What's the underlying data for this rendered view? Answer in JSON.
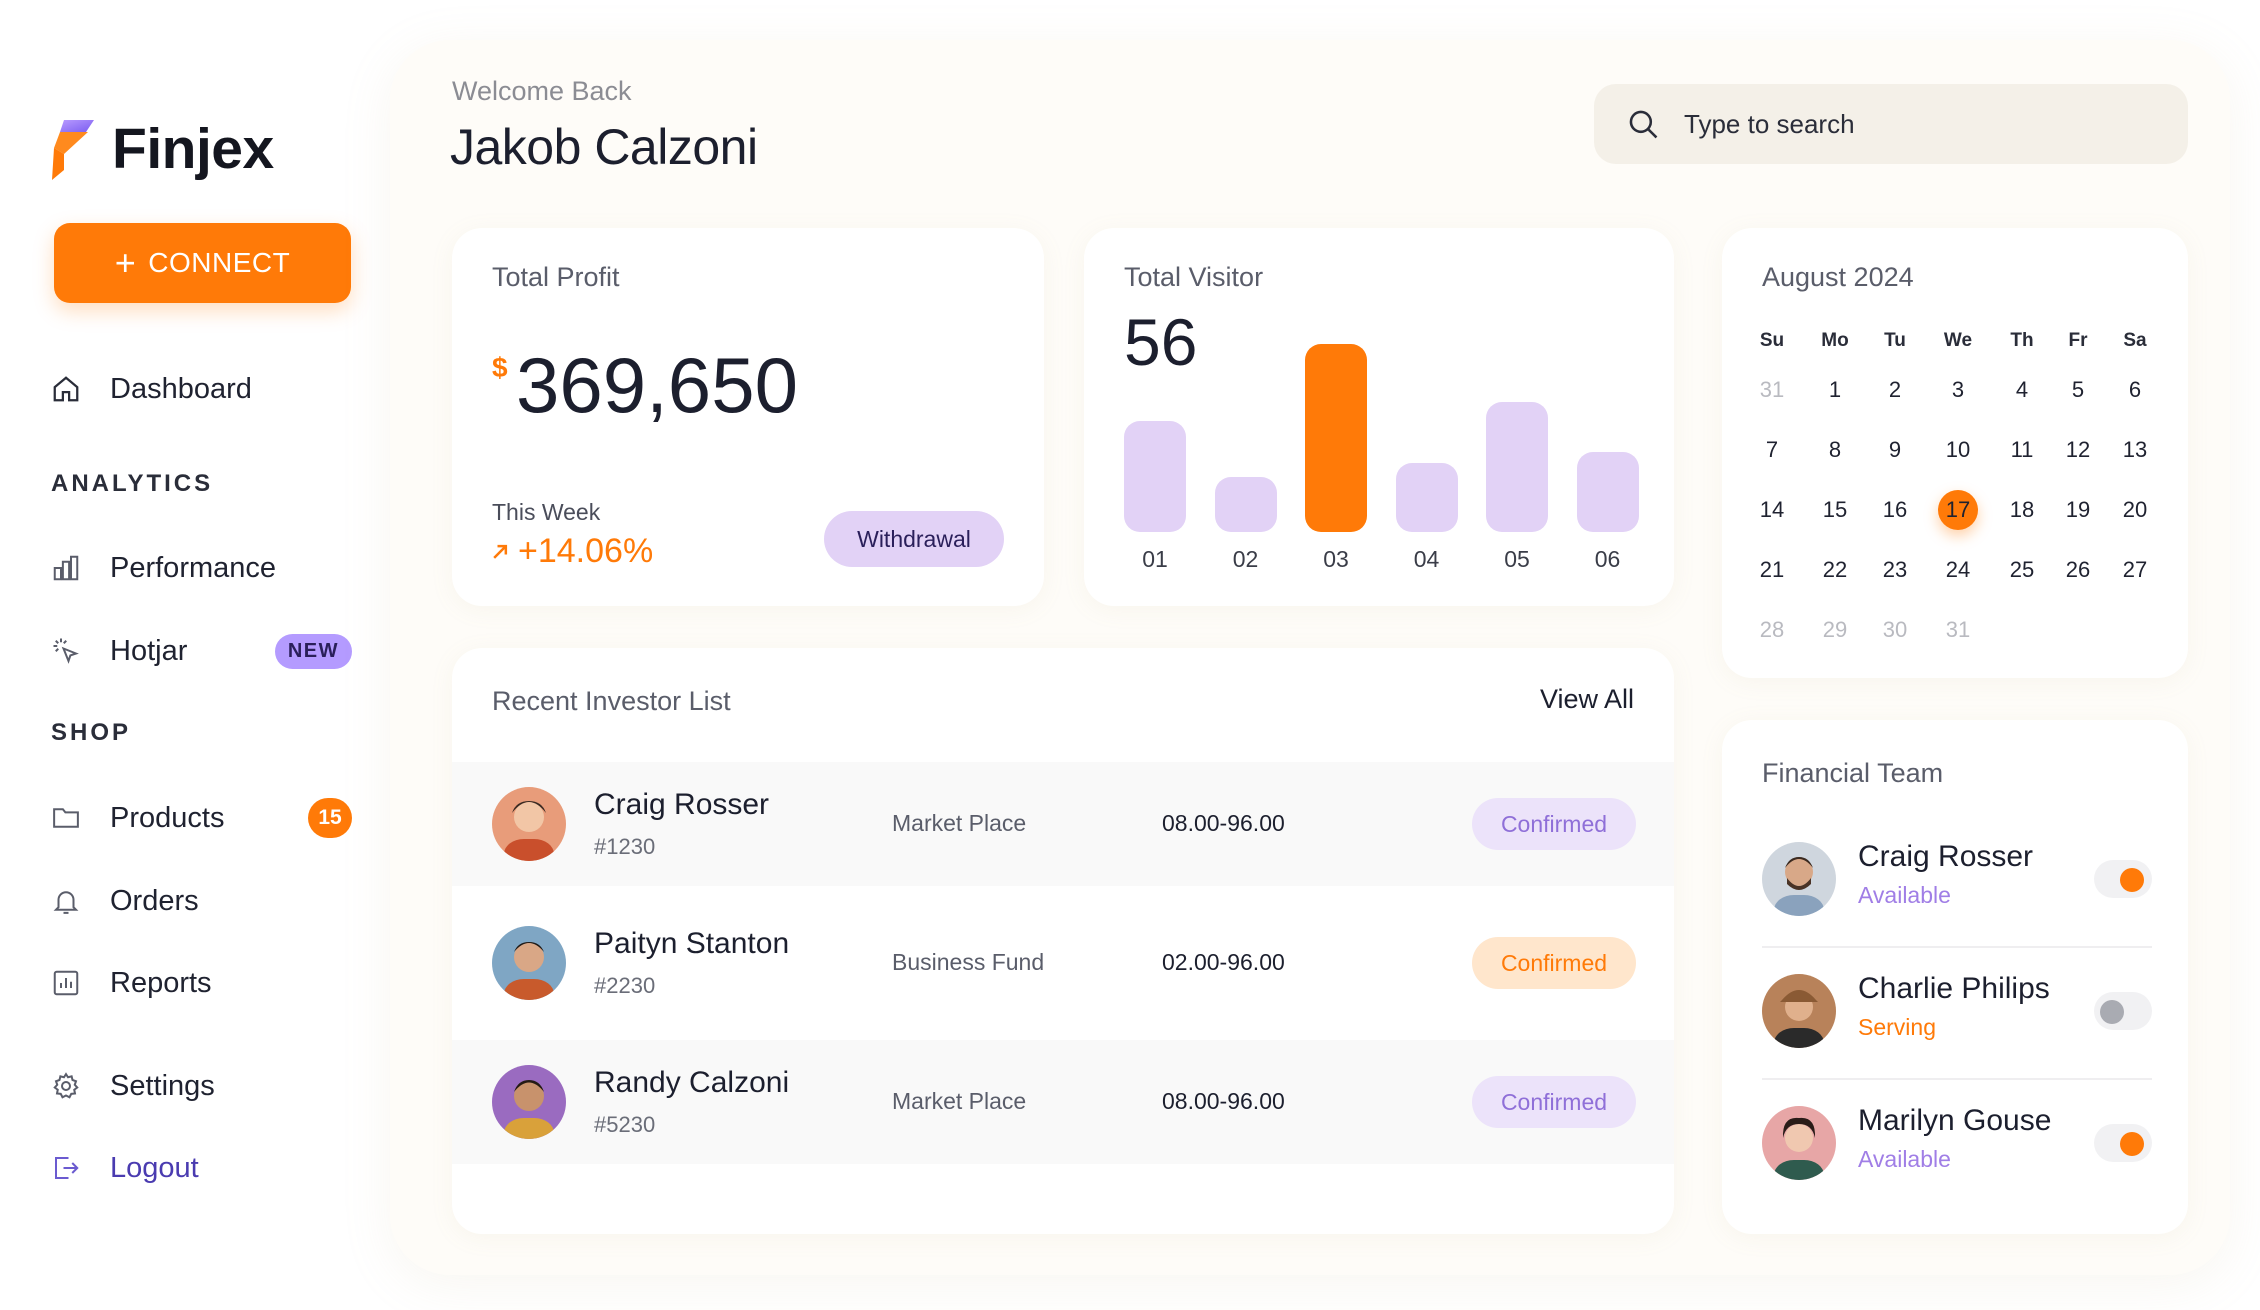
{
  "brand": {
    "name": "Finjex"
  },
  "sidebar": {
    "connect_label": "CONNECT",
    "dashboard": "Dashboard",
    "analytics_title": "ANALYTICS",
    "performance": "Performance",
    "hotjar": "Hotjar",
    "hotjar_badge": "NEW",
    "shop_title": "SHOP",
    "products": "Products",
    "products_count": "15",
    "orders": "Orders",
    "reports": "Reports",
    "settings": "Settings",
    "logout": "Logout"
  },
  "header": {
    "welcome": "Welcome Back",
    "user_name": "Jakob Calzoni",
    "search_placeholder": "Type to search"
  },
  "profit": {
    "title": "Total Profit",
    "currency": "$",
    "value": "369,650",
    "week_label": "This Week",
    "week_change": "+14.06%",
    "withdraw_label": "Withdrawal"
  },
  "visitor": {
    "title": "Total Visitor",
    "value": "56",
    "chart_data": {
      "type": "bar",
      "categories": [
        "01",
        "02",
        "03",
        "04",
        "05",
        "06"
      ],
      "values": [
        40,
        20,
        68,
        25,
        47,
        29
      ],
      "highlight_index": 2,
      "colors": {
        "bar": "#e2d2f6",
        "highlight": "#ff7a08"
      }
    }
  },
  "calendar": {
    "title": "August 2024",
    "weekdays": [
      "Su",
      "Mo",
      "Tu",
      "We",
      "Th",
      "Fr",
      "Sa"
    ],
    "weeks": [
      [
        "31",
        "1",
        "2",
        "3",
        "4",
        "5",
        "6"
      ],
      [
        "7",
        "8",
        "9",
        "10",
        "11",
        "12",
        "13"
      ],
      [
        "14",
        "15",
        "16",
        "17",
        "18",
        "19",
        "20"
      ],
      [
        "21",
        "22",
        "23",
        "24",
        "25",
        "26",
        "27"
      ],
      [
        "28",
        "29",
        "30",
        "31",
        "",
        "",
        ""
      ]
    ],
    "selected": "17"
  },
  "investors": {
    "title": "Recent Investor List",
    "view_all": "View All",
    "rows": [
      {
        "name": "Craig Rosser",
        "id": "#1230",
        "type": "Market Place",
        "range": "08.00-96.00",
        "status": "Confirmed",
        "tone": "purple"
      },
      {
        "name": "Paityn Stanton",
        "id": "#2230",
        "type": "Business Fund",
        "range": "02.00-96.00",
        "status": "Confirmed",
        "tone": "orange"
      },
      {
        "name": "Randy Calzoni",
        "id": "#5230",
        "type": "Market Place",
        "range": "08.00-96.00",
        "status": "Confirmed",
        "tone": "purple"
      }
    ]
  },
  "team": {
    "title": "Financial Team",
    "members": [
      {
        "name": "Craig Rosser",
        "status": "Available",
        "tone": "purple",
        "toggle": "on"
      },
      {
        "name": "Charlie Philips",
        "status": "Serving",
        "tone": "orange",
        "toggle": "off"
      },
      {
        "name": "Marilyn Gouse",
        "status": "Available",
        "tone": "purple",
        "toggle": "on"
      }
    ]
  },
  "colors": {
    "accent": "#ff7a08",
    "lavender": "#e2d2f6",
    "purple_text": "#8f6fd8"
  }
}
